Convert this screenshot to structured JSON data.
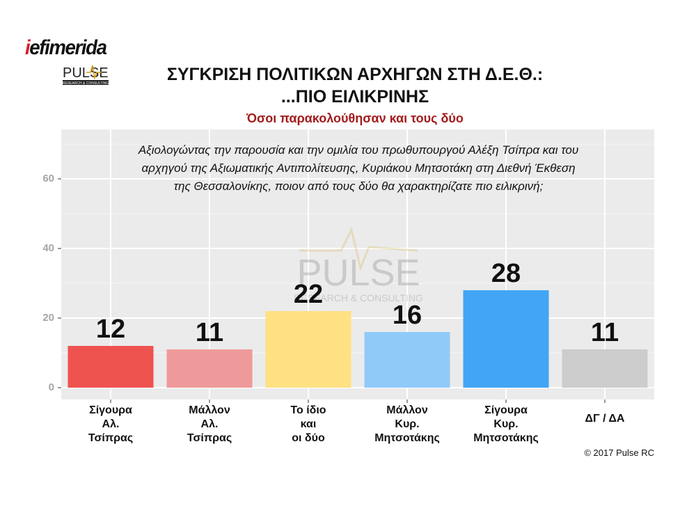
{
  "logo": {
    "brand": "iefimerida",
    "brand_prefix": "i",
    "brand_rest": "efimerida",
    "partner": "PULSE",
    "partner_sub": "RESEARCH & CONSULTING"
  },
  "header": {
    "title_line1": "ΣΥΓΚΡΙΣΗ ΠΟΛΙΤΙΚΩΝ ΑΡΧΗΓΩΝ ΣΤΗ Δ.Ε.Θ.:",
    "title_line2": "...ΠΙΟ ΕΙΛΙΚΡΙΝΗΣ",
    "subtitle": "Όσοι παρακολούθησαν και τους δύο"
  },
  "question": {
    "line1": "Αξιολογώντας την παρουσία και την ομιλία του πρωθυπουργού Αλέξη Τσίπρα και του",
    "line2": "αρχηγού της Αξιωματικής Αντιπολίτευσης, Κυριάκου Μητσοτάκη στη Διεθνή Έκθεση",
    "line3": "της Θεσσαλονίκης, ποιον από τους δύο θα χαρακτηρίζατε πιο ειλικρινή;"
  },
  "watermark": {
    "text": "PULSE",
    "sub": "RESEARCH & CONSULTING"
  },
  "chart_data": {
    "type": "bar",
    "title": "ΣΥΓΚΡΙΣΗ ΠΟΛΙΤΙΚΩΝ ΑΡΧΗΓΩΝ ΣΤΗ Δ.Ε.Θ.: ...ΠΙΟ ΕΙΛΙΚΡΙΝΗΣ",
    "subtitle": "Όσοι παρακολούθησαν και τους δύο",
    "xlabel": "",
    "ylabel": "",
    "ylim": [
      0,
      72
    ],
    "yticks": [
      0,
      20,
      40,
      60
    ],
    "grid": true,
    "categories": [
      [
        "Σίγουρα",
        "Αλ.",
        "Τσίπρας"
      ],
      [
        "Μάλλον",
        "Αλ.",
        "Τσίπρας"
      ],
      [
        "Το ίδιο",
        "και",
        "οι δύο"
      ],
      [
        "Μάλλον",
        "Κυρ.",
        "Μητσοτάκης"
      ],
      [
        "Σίγουρα",
        "Κυρ.",
        "Μητσοτάκης"
      ],
      [
        "ΔΓ / ΔΑ"
      ]
    ],
    "values": [
      12,
      11,
      22,
      16,
      28,
      11
    ],
    "colors": [
      "#ef5350",
      "#ef9a9a",
      "#ffe082",
      "#90caf9",
      "#42a5f5",
      "#cccccc"
    ]
  },
  "footer": {
    "credit": "© 2017 Pulse RC"
  }
}
